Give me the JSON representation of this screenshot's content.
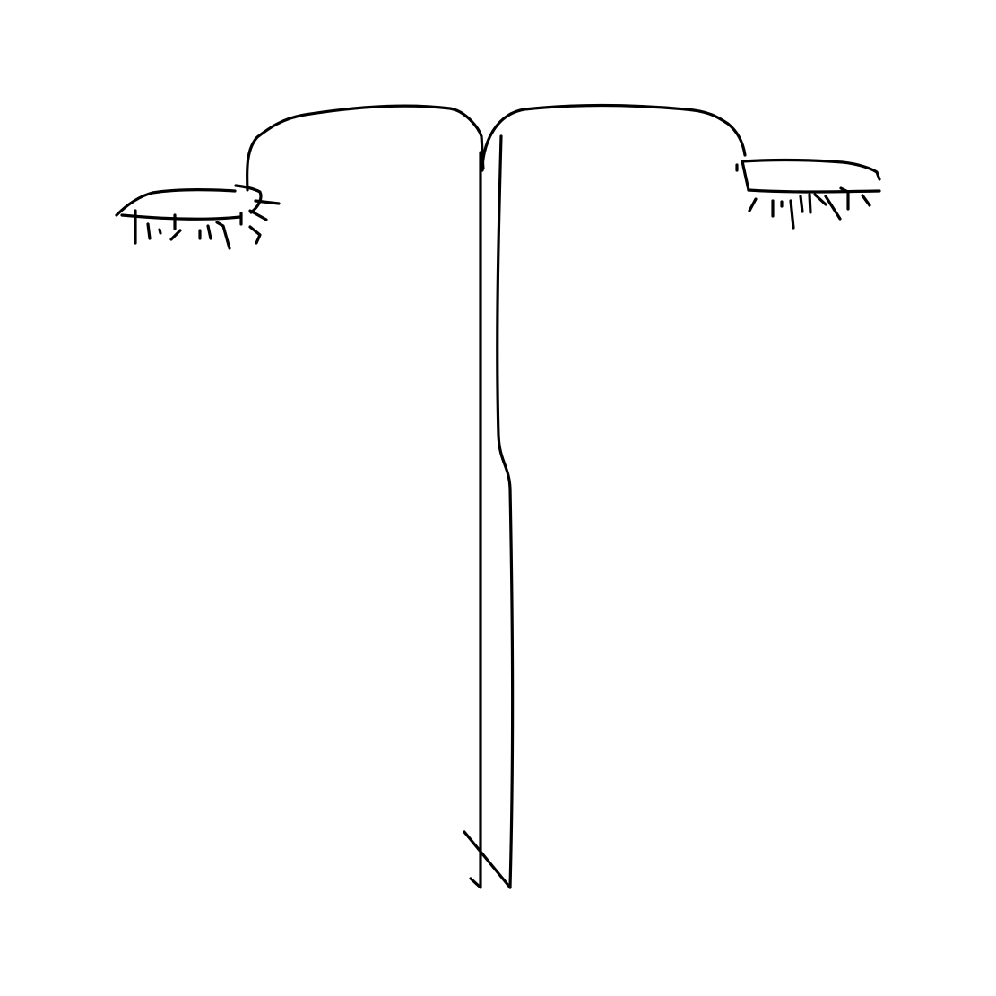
{
  "drawing": {
    "ink_color": "#000000",
    "background_color": "#ffffff",
    "parts": [
      "pole-left-edge",
      "pole-right-edge",
      "pole-base-mark",
      "left-arm",
      "right-arm",
      "left-lamp-head",
      "right-lamp-head",
      "left-light-rays",
      "right-light-rays"
    ]
  }
}
